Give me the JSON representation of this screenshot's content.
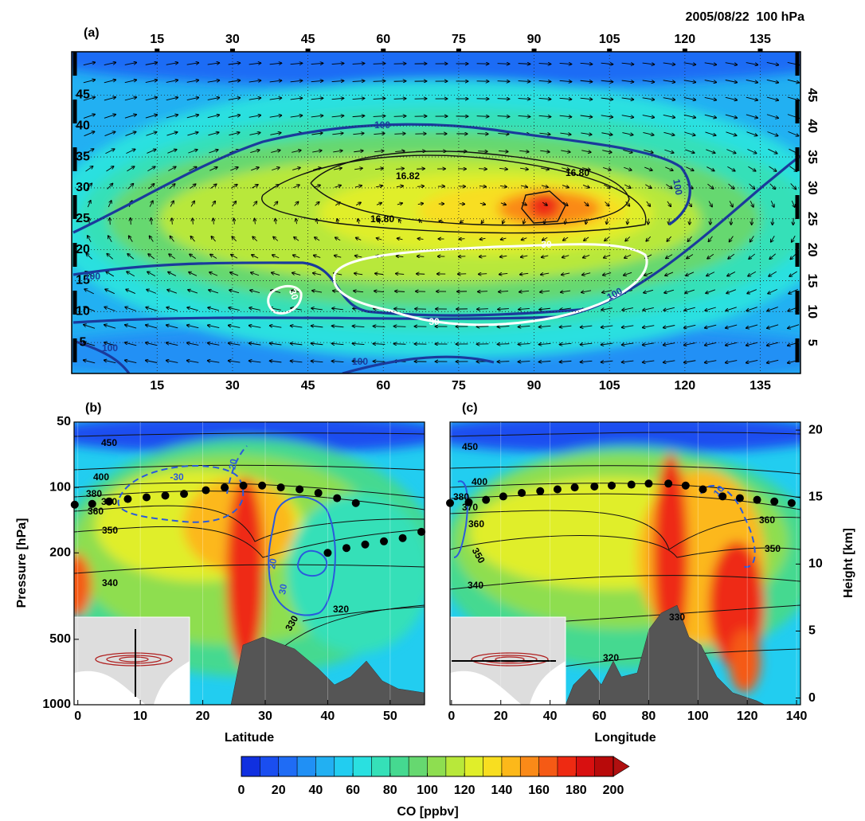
{
  "panel_a": {
    "label": "(a)",
    "title": "2005/08/22  100 hPa",
    "xlim": [
      -2,
      143
    ],
    "ylim": [
      0,
      52
    ],
    "xticks": [
      15,
      30,
      45,
      60,
      75,
      90,
      105,
      120,
      135
    ],
    "yticks": [
      5,
      10,
      15,
      20,
      25,
      30,
      35,
      40,
      45
    ],
    "co_contour_labels": [
      "100",
      "100",
      "100",
      "100",
      "100",
      "100"
    ],
    "height_contour_labels": [
      "16.82",
      "16.80",
      "16.80"
    ],
    "omega_contour_labels": [
      "30",
      "30",
      "30"
    ]
  },
  "panel_b": {
    "label": "(b)",
    "xlabel": "Latitude",
    "ylabel": "Pressure [hPa]",
    "yscale": "log",
    "xlim": [
      -0.6,
      55.5
    ],
    "ylim": [
      50,
      1000
    ],
    "xticks": [
      0,
      10,
      20,
      30,
      40,
      50
    ],
    "yticks": [
      50,
      100,
      200,
      500,
      1000
    ],
    "isentrope_labels": [
      "450",
      "400",
      "380",
      "370",
      "360",
      "350",
      "340",
      "330",
      "320"
    ],
    "contour_labels": [
      "-30",
      "-20",
      "20",
      "30"
    ],
    "tropopause": {
      "x": [
        -0.5,
        2.3,
        5,
        8,
        11,
        14,
        17,
        20.5,
        23.5,
        26.5,
        29.5,
        32.5,
        35.5,
        38.5,
        41.5,
        44.5,
        40,
        43,
        46,
        49,
        52,
        55
      ],
      "values": [
        120,
        119,
        116,
        113,
        111,
        109,
        107,
        103,
        100,
        98,
        98,
        100,
        102,
        106,
        112,
        118,
        200,
        190,
        183,
        177,
        171,
        160
      ]
    }
  },
  "panel_c": {
    "label": "(c)",
    "xlabel": "Longitude",
    "y2label": "Height [km]",
    "yscale": "log",
    "xlim": [
      -0.6,
      141.6
    ],
    "ylim": [
      50,
      1000
    ],
    "y2lim": [
      -0.5,
      20.6
    ],
    "xticks": [
      0,
      20,
      40,
      60,
      80,
      100,
      120,
      140
    ],
    "y2ticks": [
      0,
      5,
      10,
      15,
      20
    ],
    "isentrope_labels": [
      "450",
      "400",
      "380",
      "370",
      "360",
      "350",
      "340",
      "330",
      "320",
      "360",
      "350"
    ],
    "contour_labels": [
      "10"
    ],
    "tropopause": {
      "x": [
        -0.6,
        7,
        14,
        21,
        28.5,
        36,
        43,
        50,
        58,
        65,
        73,
        80,
        88,
        95,
        102,
        110,
        117,
        124,
        131,
        138
      ],
      "values": [
        118,
        117,
        114,
        110,
        106,
        104,
        102,
        100,
        99,
        98,
        97,
        96,
        96,
        98,
        102,
        110,
        112,
        114,
        116,
        118
      ]
    }
  },
  "colorbar": {
    "label": "CO [ppbv]",
    "lim": [
      0,
      200
    ],
    "ticks": [
      0,
      20,
      40,
      60,
      80,
      100,
      120,
      140,
      160,
      180,
      200
    ],
    "colors": [
      "#1030e0",
      "#1a4ef0",
      "#1f6cf5",
      "#2090f5",
      "#22b0f2",
      "#22cdf0",
      "#2ae0e0",
      "#35e0b8",
      "#45d990",
      "#66d870",
      "#8ede50",
      "#b8e83a",
      "#e0ee2a",
      "#f8de20",
      "#fcb81a",
      "#fa8a18",
      "#f55a15",
      "#ee2a12",
      "#d81010",
      "#b80a0a"
    ],
    "extend_color": "#b01010"
  }
}
